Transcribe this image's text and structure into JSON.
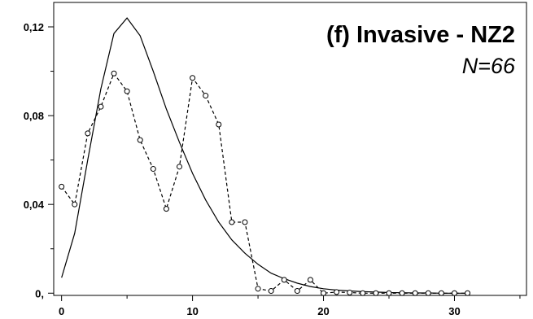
{
  "chart_data": {
    "type": "line",
    "title": "(f) Invasive - NZ2",
    "subtitle": "N=66",
    "xlabel": "",
    "ylabel": "",
    "xlim": [
      -0.6,
      35.5
    ],
    "ylim": [
      -0.001,
      0.131
    ],
    "x_ticks": [
      0,
      10,
      20,
      30
    ],
    "y_ticks": [
      0,
      0.04,
      0.08,
      0.12
    ],
    "x_tick_labels": [
      "0",
      "10",
      "20",
      "30"
    ],
    "y_tick_labels": [
      "0,",
      "0,04",
      "0,08",
      "0,12"
    ],
    "grid": false,
    "legend": "none",
    "series": [
      {
        "style": "solid",
        "x": [
          0,
          1,
          2,
          3,
          4,
          5,
          6,
          7,
          8,
          9,
          10,
          11,
          12,
          13,
          14,
          15,
          16,
          17,
          18,
          19,
          20,
          21,
          22,
          23,
          24,
          25,
          26,
          27,
          28,
          29,
          30,
          31
        ],
        "values": [
          0.007,
          0.027,
          0.06,
          0.092,
          0.117,
          0.124,
          0.116,
          0.1,
          0.083,
          0.068,
          0.054,
          0.042,
          0.032,
          0.024,
          0.018,
          0.013,
          0.009,
          0.0065,
          0.0045,
          0.003,
          0.002,
          0.0014,
          0.001,
          0.0007,
          0.0005,
          0.0003,
          0.0002,
          0.0001,
          0.0001,
          0.0,
          0.0,
          0.0
        ]
      },
      {
        "style": "dashed-circle-markers",
        "x": [
          0,
          1,
          2,
          3,
          4,
          5,
          6,
          7,
          8,
          9,
          10,
          11,
          12,
          13,
          14,
          15,
          16,
          17,
          18,
          19,
          20,
          21,
          22,
          23,
          24,
          25,
          26,
          27,
          28,
          29,
          30,
          31
        ],
        "values": [
          0.048,
          0.04,
          0.072,
          0.084,
          0.099,
          0.091,
          0.069,
          0.056,
          0.038,
          0.057,
          0.097,
          0.089,
          0.076,
          0.032,
          0.032,
          0.002,
          0.001,
          0.006,
          0.001,
          0.006,
          0.0,
          0.0005,
          0.0003,
          0.0,
          0.0,
          0.0,
          0.0,
          0.0,
          0.0,
          0.0,
          0.0,
          0.0
        ]
      }
    ]
  }
}
